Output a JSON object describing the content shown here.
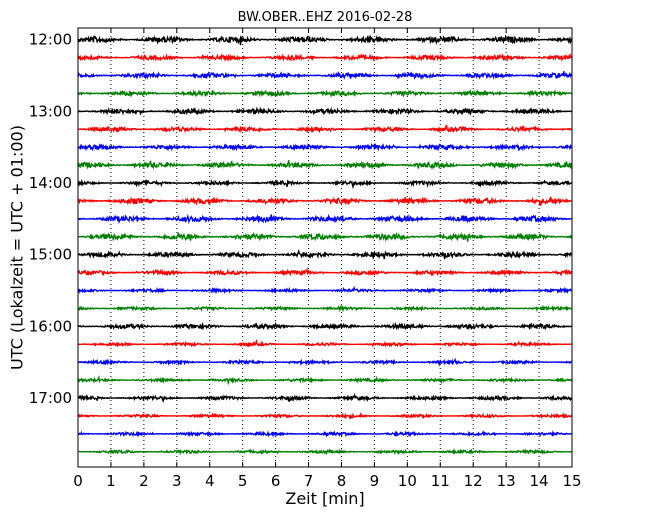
{
  "chart_data": {
    "type": "line",
    "title": "BW.OBER..EHZ 2016-02-28",
    "xlabel": "Zeit  [min]",
    "ylabel": "UTC (Lokalzeit = UTC + 01:00)",
    "xlim": [
      0,
      15
    ],
    "x_ticks": [
      "0",
      "1",
      "2",
      "3",
      "4",
      "5",
      "6",
      "7",
      "8",
      "9",
      "10",
      "11",
      "12",
      "13",
      "14",
      "15"
    ],
    "y_ticks": [
      "12:00",
      "13:00",
      "14:00",
      "15:00",
      "16:00",
      "17:00"
    ],
    "grid": "vertical dotted at each minute",
    "row_interval_minutes": 15,
    "colors": {
      "black": "#000000",
      "red": "#ff0000",
      "blue": "#0000ff",
      "green": "#008000"
    },
    "series": [
      {
        "start": "12:00",
        "color": "black",
        "amplitude": 0.75
      },
      {
        "start": "12:15",
        "color": "red",
        "amplitude": 0.55
      },
      {
        "start": "12:30",
        "color": "blue",
        "amplitude": 0.6
      },
      {
        "start": "12:45",
        "color": "green",
        "amplitude": 0.55
      },
      {
        "start": "13:00",
        "color": "black",
        "amplitude": 0.6
      },
      {
        "start": "13:15",
        "color": "red",
        "amplitude": 0.55
      },
      {
        "start": "13:30",
        "color": "blue",
        "amplitude": 0.55
      },
      {
        "start": "13:45",
        "color": "green",
        "amplitude": 0.65
      },
      {
        "start": "14:00",
        "color": "black",
        "amplitude": 0.45
      },
      {
        "start": "14:15",
        "color": "red",
        "amplitude": 0.65
      },
      {
        "start": "14:30",
        "color": "blue",
        "amplitude": 0.7
      },
      {
        "start": "14:45",
        "color": "green",
        "amplitude": 0.7
      },
      {
        "start": "15:00",
        "color": "black",
        "amplitude": 0.6
      },
      {
        "start": "15:15",
        "color": "red",
        "amplitude": 0.5
      },
      {
        "start": "15:30",
        "color": "blue",
        "amplitude": 0.35
      },
      {
        "start": "15:45",
        "color": "green",
        "amplitude": 0.35
      },
      {
        "start": "16:00",
        "color": "black",
        "amplitude": 0.55
      },
      {
        "start": "16:15",
        "color": "red",
        "amplitude": 0.35
      },
      {
        "start": "16:30",
        "color": "blue",
        "amplitude": 0.35
      },
      {
        "start": "16:45",
        "color": "green",
        "amplitude": 0.35
      },
      {
        "start": "17:00",
        "color": "black",
        "amplitude": 0.45
      },
      {
        "start": "17:15",
        "color": "red",
        "amplitude": 0.35
      },
      {
        "start": "17:30",
        "color": "blue",
        "amplitude": 0.35
      },
      {
        "start": "17:45",
        "color": "green",
        "amplitude": 0.35
      }
    ]
  }
}
